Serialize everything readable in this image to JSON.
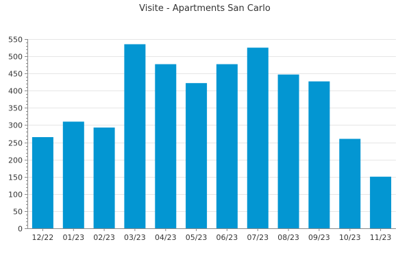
{
  "chart_data": {
    "type": "bar",
    "title": "Visite - Apartments San Carlo",
    "xlabel": "",
    "ylabel": "",
    "categories": [
      "12/22",
      "01/23",
      "02/23",
      "03/23",
      "04/23",
      "05/23",
      "06/23",
      "07/23",
      "08/23",
      "09/23",
      "10/23",
      "11/23"
    ],
    "values": [
      265,
      310,
      293,
      535,
      477,
      422,
      477,
      525,
      447,
      427,
      260,
      150
    ],
    "ylim": [
      0,
      550
    ],
    "yticks": [
      0,
      50,
      100,
      150,
      200,
      250,
      300,
      350,
      400,
      450,
      500,
      550
    ],
    "grid": true,
    "legend": "none",
    "colors": {
      "bar": "#0396d2",
      "grid": "#e6e6e6",
      "axis": "#888888",
      "text": "#333333"
    }
  }
}
